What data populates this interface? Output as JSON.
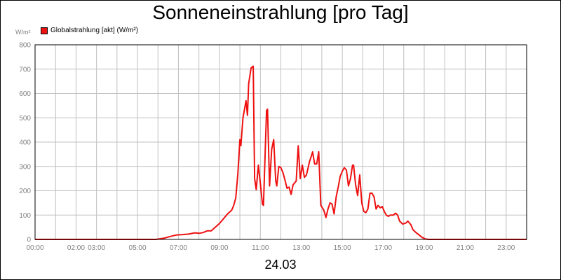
{
  "title": "Sonneneinstrahlung [pro Tag]",
  "unit": "W/m²",
  "date_caption": "24.03",
  "colors": {
    "series": "#ee1111",
    "grid": "#c0c0c0",
    "axis": "#000000",
    "tick_text": "#808080"
  },
  "chart_data": {
    "type": "line",
    "title": "Sonneneinstrahlung [pro Tag]",
    "ylabel": "W/m²",
    "xlabel": "24.03",
    "ylim": [
      0,
      800
    ],
    "xlim_hours": [
      0,
      24
    ],
    "yticks": [
      "0",
      "100",
      "200",
      "300",
      "400",
      "500",
      "600",
      "700",
      "800"
    ],
    "xticks": [
      {
        "hour": 0,
        "label": "00:00"
      },
      {
        "hour": 2,
        "label": "02:00"
      },
      {
        "hour": 3,
        "label": "03:00"
      },
      {
        "hour": 5,
        "label": "05:00"
      },
      {
        "hour": 7,
        "label": "07:00"
      },
      {
        "hour": 9,
        "label": "09:00"
      },
      {
        "hour": 11,
        "label": "11:00"
      },
      {
        "hour": 13,
        "label": "13:00"
      },
      {
        "hour": 15,
        "label": "15:00"
      },
      {
        "hour": 17,
        "label": "17:00"
      },
      {
        "hour": 19,
        "label": "19:00"
      },
      {
        "hour": 21,
        "label": "21:00"
      },
      {
        "hour": 23,
        "label": "23:00"
      }
    ],
    "legend_position": "top-left",
    "grid": true,
    "series": [
      {
        "name": "Globalstrahlung [akt] (W/m²)",
        "points": [
          [
            0.0,
            0
          ],
          [
            5.9,
            0
          ],
          [
            6.3,
            5
          ],
          [
            6.6,
            12
          ],
          [
            6.9,
            18
          ],
          [
            7.2,
            20
          ],
          [
            7.5,
            22
          ],
          [
            7.8,
            27
          ],
          [
            8.0,
            25
          ],
          [
            8.2,
            28
          ],
          [
            8.4,
            35
          ],
          [
            8.6,
            35
          ],
          [
            8.8,
            50
          ],
          [
            9.0,
            65
          ],
          [
            9.2,
            85
          ],
          [
            9.4,
            105
          ],
          [
            9.6,
            120
          ],
          [
            9.7,
            140
          ],
          [
            9.8,
            170
          ],
          [
            9.9,
            270
          ],
          [
            10.0,
            410
          ],
          [
            10.05,
            385
          ],
          [
            10.15,
            500
          ],
          [
            10.3,
            570
          ],
          [
            10.37,
            510
          ],
          [
            10.43,
            640
          ],
          [
            10.55,
            705
          ],
          [
            10.65,
            712
          ],
          [
            10.72,
            250
          ],
          [
            10.8,
            205
          ],
          [
            10.9,
            305
          ],
          [
            11.0,
            230
          ],
          [
            11.1,
            145
          ],
          [
            11.15,
            140
          ],
          [
            11.3,
            530
          ],
          [
            11.35,
            535
          ],
          [
            11.45,
            220
          ],
          [
            11.55,
            370
          ],
          [
            11.65,
            410
          ],
          [
            11.75,
            240
          ],
          [
            11.8,
            220
          ],
          [
            11.9,
            300
          ],
          [
            12.0,
            295
          ],
          [
            12.1,
            275
          ],
          [
            12.2,
            245
          ],
          [
            12.3,
            210
          ],
          [
            12.4,
            215
          ],
          [
            12.5,
            185
          ],
          [
            12.6,
            225
          ],
          [
            12.75,
            240
          ],
          [
            12.85,
            385
          ],
          [
            12.95,
            250
          ],
          [
            13.05,
            305
          ],
          [
            13.15,
            255
          ],
          [
            13.25,
            265
          ],
          [
            13.4,
            320
          ],
          [
            13.5,
            345
          ],
          [
            13.55,
            360
          ],
          [
            13.65,
            310
          ],
          [
            13.75,
            310
          ],
          [
            13.85,
            360
          ],
          [
            13.95,
            140
          ],
          [
            14.1,
            120
          ],
          [
            14.2,
            90
          ],
          [
            14.3,
            125
          ],
          [
            14.4,
            150
          ],
          [
            14.5,
            145
          ],
          [
            14.6,
            105
          ],
          [
            14.7,
            175
          ],
          [
            14.8,
            215
          ],
          [
            14.9,
            260
          ],
          [
            15.0,
            280
          ],
          [
            15.1,
            295
          ],
          [
            15.2,
            285
          ],
          [
            15.3,
            220
          ],
          [
            15.4,
            250
          ],
          [
            15.5,
            305
          ],
          [
            15.55,
            305
          ],
          [
            15.65,
            225
          ],
          [
            15.75,
            180
          ],
          [
            15.85,
            265
          ],
          [
            15.95,
            150
          ],
          [
            16.05,
            115
          ],
          [
            16.15,
            110
          ],
          [
            16.25,
            125
          ],
          [
            16.35,
            190
          ],
          [
            16.45,
            190
          ],
          [
            16.55,
            175
          ],
          [
            16.65,
            125
          ],
          [
            16.75,
            140
          ],
          [
            16.85,
            130
          ],
          [
            16.95,
            135
          ],
          [
            17.05,
            115
          ],
          [
            17.15,
            100
          ],
          [
            17.25,
            95
          ],
          [
            17.35,
            100
          ],
          [
            17.5,
            100
          ],
          [
            17.6,
            108
          ],
          [
            17.7,
            100
          ],
          [
            17.8,
            75
          ],
          [
            17.95,
            63
          ],
          [
            18.1,
            67
          ],
          [
            18.2,
            75
          ],
          [
            18.35,
            60
          ],
          [
            18.45,
            40
          ],
          [
            18.6,
            28
          ],
          [
            18.75,
            18
          ],
          [
            18.9,
            8
          ],
          [
            19.05,
            2
          ],
          [
            19.2,
            0
          ],
          [
            24.0,
            0
          ]
        ]
      }
    ]
  }
}
